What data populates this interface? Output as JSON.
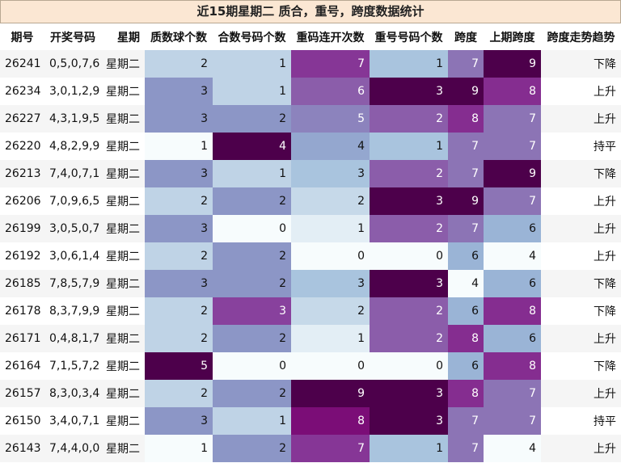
{
  "title": "近15期星期二 质合，重号，跨度数据统计",
  "chart_data": {
    "type": "table",
    "columns": [
      "期号",
      "开奖号码",
      "星期",
      "质数球个数",
      "合数号码个数",
      "重码连开次数",
      "重号号码个数",
      "跨度",
      "上期跨度",
      "跨度走势趋势"
    ],
    "rows": [
      {
        "issue": "26241",
        "numbers": "0,5,0,7,6",
        "weekday": "星期二",
        "prime": 2,
        "composite": 1,
        "repeat_streak": 7,
        "repeat_count": 1,
        "span": 7,
        "prev_span": 9,
        "trend": "下降"
      },
      {
        "issue": "26234",
        "numbers": "3,0,1,2,9",
        "weekday": "星期二",
        "prime": 3,
        "composite": 1,
        "repeat_streak": 6,
        "repeat_count": 3,
        "span": 9,
        "prev_span": 8,
        "trend": "上升"
      },
      {
        "issue": "26227",
        "numbers": "4,3,1,9,5",
        "weekday": "星期二",
        "prime": 3,
        "composite": 2,
        "repeat_streak": 5,
        "repeat_count": 2,
        "span": 8,
        "prev_span": 7,
        "trend": "上升"
      },
      {
        "issue": "26220",
        "numbers": "4,8,2,9,9",
        "weekday": "星期二",
        "prime": 1,
        "composite": 4,
        "repeat_streak": 4,
        "repeat_count": 1,
        "span": 7,
        "prev_span": 7,
        "trend": "持平"
      },
      {
        "issue": "26213",
        "numbers": "7,4,0,7,1",
        "weekday": "星期二",
        "prime": 3,
        "composite": 1,
        "repeat_streak": 3,
        "repeat_count": 2,
        "span": 7,
        "prev_span": 9,
        "trend": "下降"
      },
      {
        "issue": "26206",
        "numbers": "7,0,9,6,5",
        "weekday": "星期二",
        "prime": 2,
        "composite": 2,
        "repeat_streak": 2,
        "repeat_count": 3,
        "span": 9,
        "prev_span": 7,
        "trend": "上升"
      },
      {
        "issue": "26199",
        "numbers": "3,0,5,0,7",
        "weekday": "星期二",
        "prime": 3,
        "composite": 0,
        "repeat_streak": 1,
        "repeat_count": 2,
        "span": 7,
        "prev_span": 6,
        "trend": "上升"
      },
      {
        "issue": "26192",
        "numbers": "3,0,6,1,4",
        "weekday": "星期二",
        "prime": 2,
        "composite": 2,
        "repeat_streak": 0,
        "repeat_count": 0,
        "span": 6,
        "prev_span": 4,
        "trend": "上升"
      },
      {
        "issue": "26185",
        "numbers": "7,8,5,7,9",
        "weekday": "星期二",
        "prime": 3,
        "composite": 2,
        "repeat_streak": 3,
        "repeat_count": 3,
        "span": 4,
        "prev_span": 6,
        "trend": "下降"
      },
      {
        "issue": "26178",
        "numbers": "8,3,7,9,9",
        "weekday": "星期二",
        "prime": 2,
        "composite": 3,
        "repeat_streak": 2,
        "repeat_count": 2,
        "span": 6,
        "prev_span": 8,
        "trend": "下降"
      },
      {
        "issue": "26171",
        "numbers": "0,4,8,1,7",
        "weekday": "星期二",
        "prime": 2,
        "composite": 2,
        "repeat_streak": 1,
        "repeat_count": 2,
        "span": 8,
        "prev_span": 6,
        "trend": "上升"
      },
      {
        "issue": "26164",
        "numbers": "7,1,5,7,2",
        "weekday": "星期二",
        "prime": 5,
        "composite": 0,
        "repeat_streak": 0,
        "repeat_count": 0,
        "span": 6,
        "prev_span": 8,
        "trend": "下降"
      },
      {
        "issue": "26157",
        "numbers": "8,3,0,3,4",
        "weekday": "星期二",
        "prime": 2,
        "composite": 2,
        "repeat_streak": 9,
        "repeat_count": 3,
        "span": 8,
        "prev_span": 7,
        "trend": "上升"
      },
      {
        "issue": "26150",
        "numbers": "3,4,0,7,1",
        "weekday": "星期二",
        "prime": 3,
        "composite": 1,
        "repeat_streak": 8,
        "repeat_count": 3,
        "span": 7,
        "prev_span": 7,
        "trend": "持平"
      },
      {
        "issue": "26143",
        "numbers": "7,4,4,0,0",
        "weekday": "星期二",
        "prime": 1,
        "composite": 2,
        "repeat_streak": 7,
        "repeat_count": 1,
        "span": 7,
        "prev_span": 4,
        "trend": "上升"
      }
    ],
    "heat_columns": [
      "prime",
      "composite",
      "repeat_streak",
      "repeat_count",
      "span",
      "prev_span"
    ],
    "colormap": [
      "#f7fcfd",
      "#e0ecf4",
      "#bfd3e6",
      "#9ebcda",
      "#8c96c6",
      "#8c6bb1",
      "#88419d",
      "#810f7c",
      "#4d004b"
    ],
    "colormap_name": "BuPu"
  }
}
